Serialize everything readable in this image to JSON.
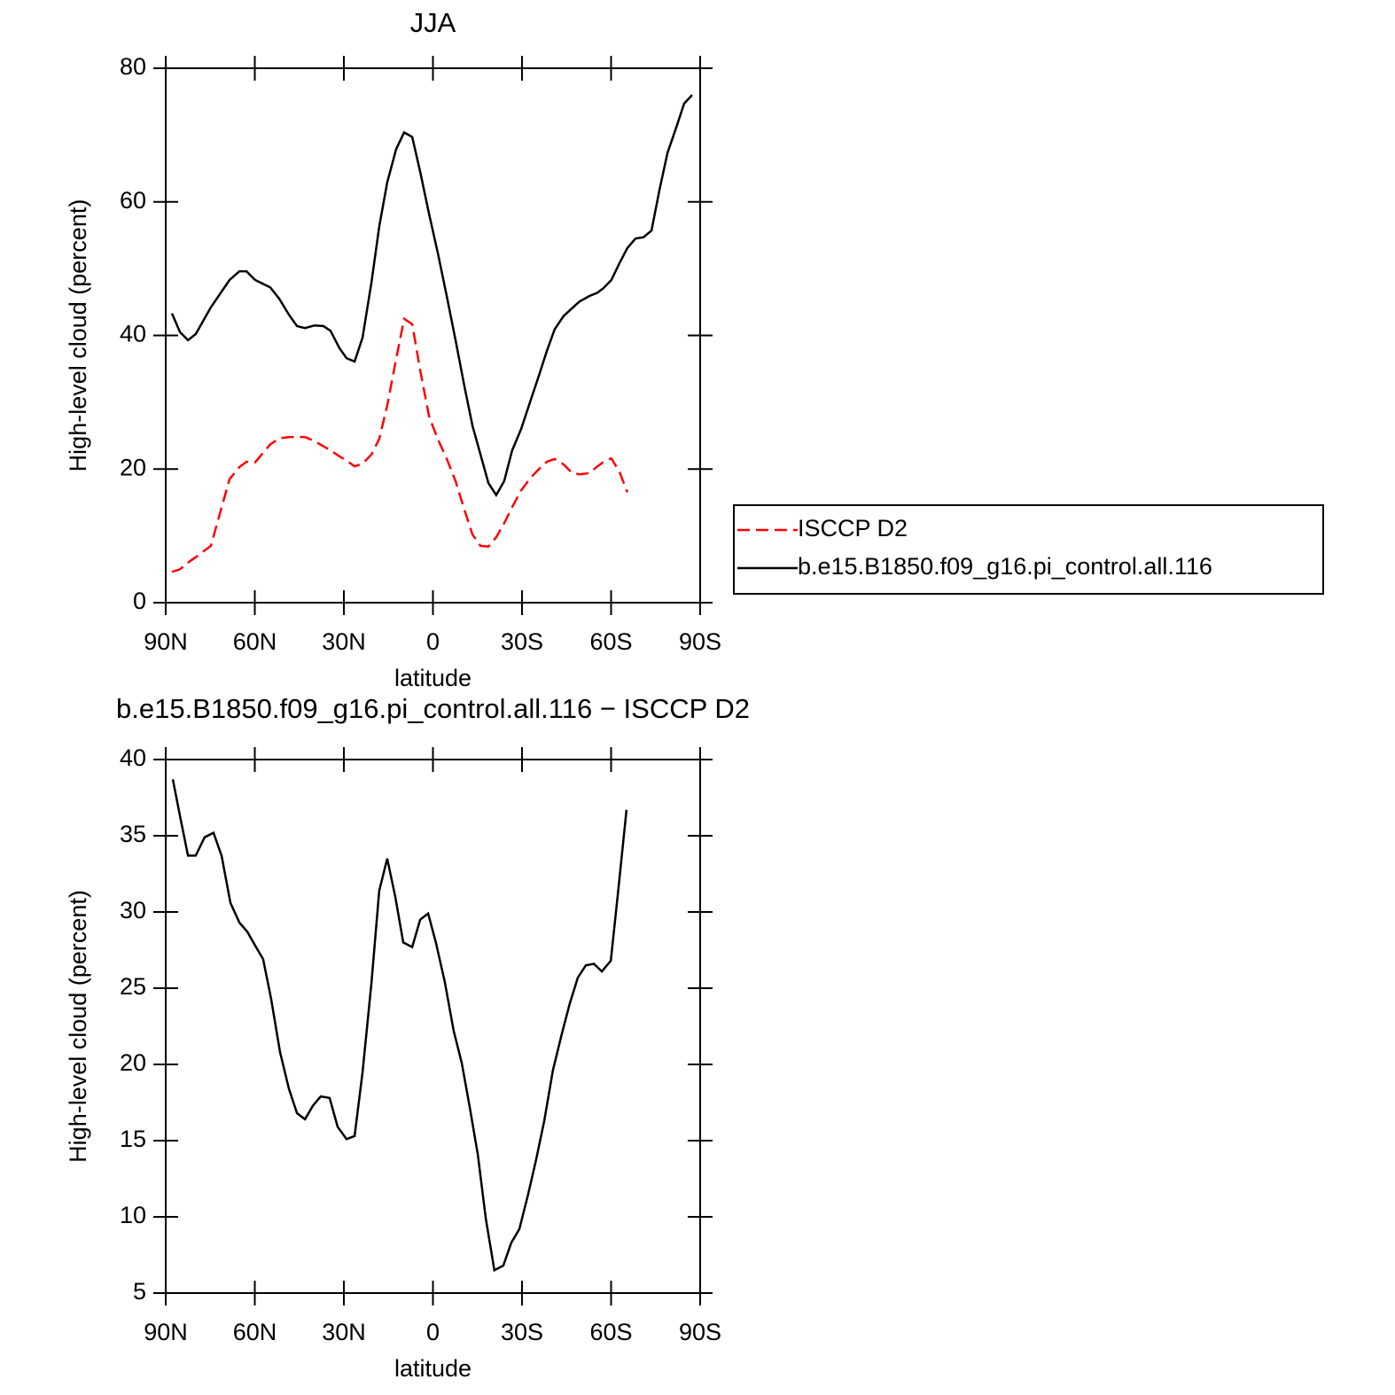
{
  "chart_data": [
    {
      "type": "line",
      "title": "JJA",
      "x_label": "latitude",
      "y_label": "High-level cloud (percent)",
      "x": [
        87.9,
        85.2,
        82.5,
        79.9,
        74.8,
        68.5,
        65.2,
        62.8,
        59.9,
        54.8,
        51.8,
        48.5,
        45.8,
        43.1,
        39.9,
        36.9,
        34.5,
        31.5,
        29.1,
        26.4,
        23.7,
        20.7,
        18.1,
        15.4,
        12.4,
        9.7,
        7.0,
        4.3,
        1.3,
        -1.6,
        -4.6,
        -7.6,
        -10.6,
        -13.3,
        -16.0,
        -18.7,
        -21.3,
        -24.0,
        -26.7,
        -29.7,
        -32.7,
        -35.7,
        -38.4,
        -41.0,
        -44.0,
        -46.7,
        -49.4,
        -52.7,
        -55.4,
        -57.5,
        -60.1,
        -62.8,
        -65.5,
        -68.2,
        -70.9,
        -73.6,
        -76.3,
        -79.0,
        -82.0,
        -84.6,
        -87.3
      ],
      "series": [
        {
          "name": "ISCCP D2",
          "color": "#ff0000",
          "line_style": "dashed",
          "values": [
            4.6,
            5.0,
            6.0,
            6.8,
            8.5,
            18.5,
            20.3,
            21.1,
            21.0,
            23.7,
            24.6,
            24.8,
            24.8,
            24.8,
            24.2,
            23.4,
            22.8,
            21.9,
            21.3,
            20.4,
            20.8,
            22.2,
            24.5,
            29.5,
            36.5,
            42.5,
            41.7,
            34.8,
            27.9,
            24.5,
            21.6,
            18.2,
            13.9,
            10.2,
            8.5,
            8.4,
            9.8,
            11.9,
            14.3,
            16.8,
            18.6,
            20.0,
            21.1,
            21.5,
            20.7,
            19.5,
            19.2,
            19.4,
            20.4,
            21.1,
            21.6,
            19.6,
            16.5,
            null,
            null,
            null,
            null,
            null,
            null,
            null,
            null
          ]
        },
        {
          "name": "b.e15.B1850.f09_g16.pi_control.all.116",
          "color": "#000000",
          "line_style": "solid",
          "values": [
            43.3,
            40.5,
            39.3,
            40.2,
            44.2,
            48.3,
            49.6,
            49.6,
            48.3,
            47.2,
            45.5,
            43.1,
            41.4,
            41.1,
            41.5,
            41.4,
            40.7,
            38.1,
            36.6,
            36.1,
            39.7,
            48.0,
            56.3,
            62.9,
            67.9,
            70.4,
            69.7,
            64.5,
            58.2,
            52.4,
            46.0,
            39.3,
            32.4,
            26.5,
            22.2,
            17.9,
            16.1,
            18.2,
            22.8,
            26.0,
            30.0,
            34.0,
            37.7,
            40.9,
            42.9,
            44.0,
            45.1,
            45.9,
            46.4,
            47.1,
            48.3,
            50.8,
            53.1,
            54.5,
            54.7,
            55.7,
            61.8,
            67.3,
            71.2,
            74.7,
            76.0
          ]
        }
      ],
      "xlim": [
        90,
        -90
      ],
      "xticks": [
        {
          "value": 90,
          "label": "90N"
        },
        {
          "value": 60,
          "label": "60N"
        },
        {
          "value": 30,
          "label": "30N"
        },
        0,
        {
          "value": -30,
          "label": "30S"
        },
        {
          "value": -60,
          "label": "60S"
        },
        {
          "value": -90,
          "label": "90S"
        }
      ],
      "ylim": [
        0,
        80
      ],
      "yticks": [
        0,
        20,
        40,
        60,
        80
      ],
      "legend": "right"
    },
    {
      "type": "line",
      "title": "b.e15.B1850.f09_g16.pi_control.all.116 − ISCCP D2",
      "x_label": "latitude",
      "y_label": "High-level cloud (percent)",
      "x": [
        87.6,
        84.9,
        82.5,
        79.9,
        76.9,
        73.9,
        71.2,
        68.2,
        65.2,
        62.5,
        59.9,
        57.2,
        54.5,
        51.5,
        48.5,
        45.8,
        43.1,
        40.4,
        37.8,
        34.8,
        32.1,
        29.1,
        26.4,
        23.7,
        20.7,
        18.1,
        15.4,
        12.7,
        10.0,
        7.0,
        4.3,
        1.6,
        -1.0,
        -4.0,
        -7.0,
        -9.7,
        -12.4,
        -15.1,
        -17.8,
        -20.7,
        -23.7,
        -26.4,
        -29.1,
        -32.1,
        -34.8,
        -37.5,
        -40.4,
        -43.4,
        -46.1,
        -48.8,
        -51.5,
        -54.2,
        -56.9,
        -59.9,
        -62.5,
        -65.2
      ],
      "values": [
        38.7,
        36.0,
        33.7,
        33.7,
        34.9,
        35.2,
        33.7,
        30.6,
        29.3,
        28.7,
        27.8,
        26.9,
        24.3,
        20.8,
        18.4,
        16.8,
        16.4,
        17.3,
        17.9,
        17.8,
        15.9,
        15.1,
        15.3,
        19.5,
        25.4,
        31.4,
        33.5,
        31.0,
        28.0,
        27.7,
        29.5,
        29.9,
        28.0,
        25.4,
        22.2,
        20.1,
        17.2,
        14.1,
        9.9,
        6.5,
        6.8,
        8.3,
        9.2,
        11.5,
        13.8,
        16.3,
        19.6,
        22.0,
        24.0,
        25.7,
        26.5,
        26.6,
        26.1,
        26.8,
        31.6,
        36.7
      ],
      "color": "#000000",
      "xlim": [
        90,
        -90
      ],
      "xticks": [
        {
          "value": 90,
          "label": "90N"
        },
        {
          "value": 60,
          "label": "60N"
        },
        {
          "value": 30,
          "label": "30N"
        },
        0,
        {
          "value": -30,
          "label": "30S"
        },
        {
          "value": -60,
          "label": "60S"
        },
        {
          "value": -90,
          "label": "90S"
        }
      ],
      "ylim": [
        5,
        40
      ],
      "yticks": [
        5,
        10,
        15,
        20,
        25,
        30,
        35,
        40
      ]
    }
  ]
}
